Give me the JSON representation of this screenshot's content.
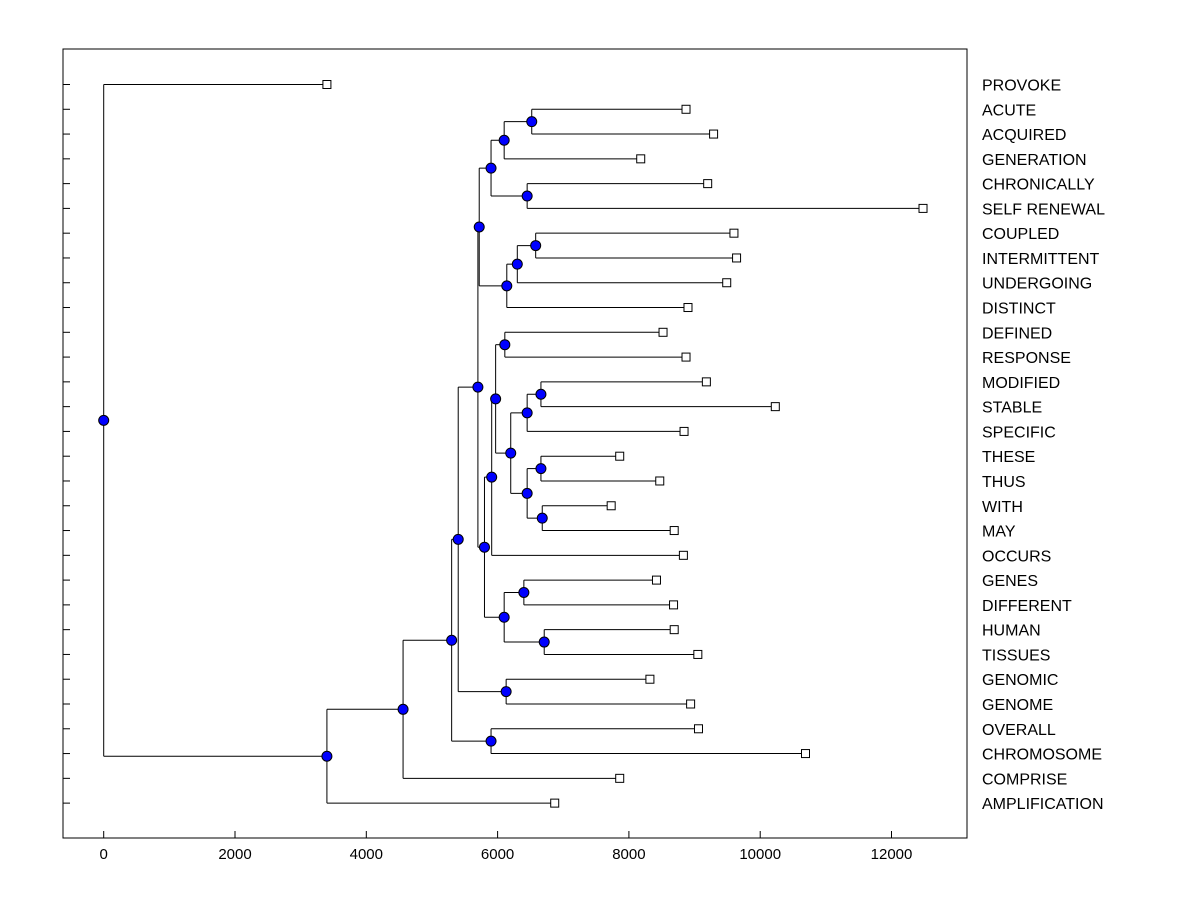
{
  "chart_data": {
    "type": "dendrogram",
    "title": "",
    "xlabel": "",
    "ylabel": "",
    "xlim": [
      -620,
      13150
    ],
    "x_ticks": [
      0,
      2000,
      4000,
      6000,
      8000,
      10000,
      12000
    ],
    "colors": {
      "node": "#0000ff",
      "line": "#000000",
      "leaf_fill": "#ffffff"
    },
    "leaves": [
      {
        "label": "PROVOKE",
        "x": 3400
      },
      {
        "label": "ACUTE",
        "x": 8870
      },
      {
        "label": "ACQUIRED",
        "x": 9290
      },
      {
        "label": "GENERATION",
        "x": 8180
      },
      {
        "label": "CHRONICALLY",
        "x": 9200
      },
      {
        "label": "SELF RENEWAL",
        "x": 12480
      },
      {
        "label": "COUPLED",
        "x": 9600
      },
      {
        "label": "INTERMITTENT",
        "x": 9640
      },
      {
        "label": "UNDERGOING",
        "x": 9490
      },
      {
        "label": "DISTINCT",
        "x": 8900
      },
      {
        "label": "DEFINED",
        "x": 8520
      },
      {
        "label": "RESPONSE",
        "x": 8870
      },
      {
        "label": "MODIFIED",
        "x": 9180
      },
      {
        "label": "STABLE",
        "x": 10230
      },
      {
        "label": "SPECIFIC",
        "x": 8840
      },
      {
        "label": "THESE",
        "x": 7860
      },
      {
        "label": "THUS",
        "x": 8470
      },
      {
        "label": "WITH",
        "x": 7730
      },
      {
        "label": "MAY",
        "x": 8690
      },
      {
        "label": "OCCURS",
        "x": 8830
      },
      {
        "label": "GENES",
        "x": 8420
      },
      {
        "label": "DIFFERENT",
        "x": 8680
      },
      {
        "label": "HUMAN",
        "x": 8690
      },
      {
        "label": "TISSUES",
        "x": 9050
      },
      {
        "label": "GENOMIC",
        "x": 8320
      },
      {
        "label": "GENOME",
        "x": 8940
      },
      {
        "label": "OVERALL",
        "x": 9060
      },
      {
        "label": "CHROMOSOME",
        "x": 10690
      },
      {
        "label": "COMPRISE",
        "x": 7860
      },
      {
        "label": "AMPLIFICATION",
        "x": 6870
      }
    ],
    "merges": [
      {
        "x": 6520,
        "children": [
          "L1",
          "L2"
        ]
      },
      {
        "x": 6100,
        "children": [
          "M0",
          "L3"
        ]
      },
      {
        "x": 6450,
        "children": [
          "L4",
          "L5"
        ]
      },
      {
        "x": 5900,
        "children": [
          "M1",
          "M2"
        ]
      },
      {
        "x": 6580,
        "children": [
          "L6",
          "L7"
        ]
      },
      {
        "x": 6300,
        "children": [
          "M4",
          "L8"
        ]
      },
      {
        "x": 6140,
        "children": [
          "M5",
          "L9"
        ]
      },
      {
        "x": 5720,
        "children": [
          "M3",
          "M6"
        ]
      },
      {
        "x": 6110,
        "children": [
          "L10",
          "L11"
        ]
      },
      {
        "x": 6660,
        "children": [
          "L12",
          "L13"
        ]
      },
      {
        "x": 6450,
        "children": [
          "M9",
          "L14"
        ]
      },
      {
        "x": 6660,
        "children": [
          "L15",
          "L16"
        ]
      },
      {
        "x": 6680,
        "children": [
          "L17",
          "L18"
        ]
      },
      {
        "x": 6450,
        "children": [
          "M11",
          "M12"
        ]
      },
      {
        "x": 6200,
        "children": [
          "M10",
          "M13"
        ]
      },
      {
        "x": 5970,
        "children": [
          "M8",
          "M14"
        ]
      },
      {
        "x": 5910,
        "children": [
          "M15",
          "L19"
        ]
      },
      {
        "x": 6400,
        "children": [
          "L20",
          "L21"
        ]
      },
      {
        "x": 6710,
        "children": [
          "L22",
          "L23"
        ]
      },
      {
        "x": 6100,
        "children": [
          "M17",
          "M18"
        ]
      },
      {
        "x": 5800,
        "children": [
          "M16",
          "M19"
        ]
      },
      {
        "x": 5700,
        "children": [
          "M7",
          "M20"
        ]
      },
      {
        "x": 6130,
        "children": [
          "L24",
          "L25"
        ]
      },
      {
        "x": 5400,
        "children": [
          "M21",
          "M22"
        ]
      },
      {
        "x": 5900,
        "children": [
          "L26",
          "L27"
        ]
      },
      {
        "x": 5300,
        "children": [
          "M23",
          "M24"
        ]
      },
      {
        "x": 4560,
        "children": [
          "M25",
          "L28"
        ]
      },
      {
        "x": 3400,
        "children": [
          "M26",
          "L29"
        ]
      },
      {
        "x": 0,
        "children": [
          "L0",
          "M27"
        ]
      }
    ]
  }
}
